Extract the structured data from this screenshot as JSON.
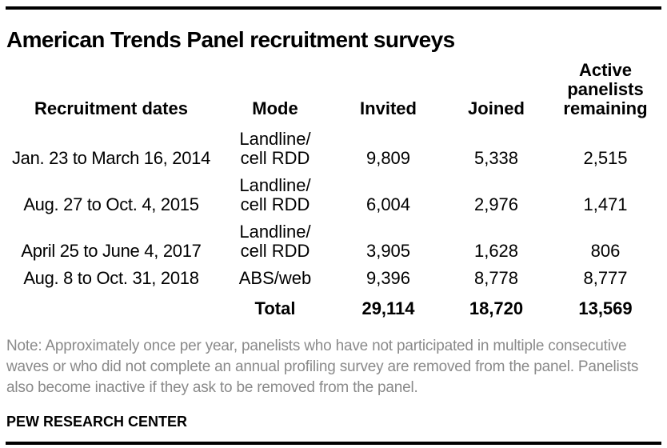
{
  "title": "American Trends Panel recruitment surveys",
  "colors": {
    "text": "#000000",
    "note_text": "#8a8a8a",
    "rule": "#000000",
    "background": "#ffffff"
  },
  "table": {
    "headers": {
      "dates": "Recruitment dates",
      "mode": "Mode",
      "invited": "Invited",
      "joined": "Joined",
      "active": "Active panelists remaining"
    },
    "rows": [
      {
        "dates": "Jan. 23 to March 16, 2014",
        "mode": [
          "Landline/",
          "cell RDD"
        ],
        "invited": "9,809",
        "joined": "5,338",
        "active": "2,515"
      },
      {
        "dates": "Aug. 27 to Oct. 4, 2015",
        "mode": [
          "Landline/",
          "cell RDD"
        ],
        "invited": "6,004",
        "joined": "2,976",
        "active": "1,471"
      },
      {
        "dates": "April 25 to June 4, 2017",
        "mode": [
          "Landline/",
          "cell RDD"
        ],
        "invited": "3,905",
        "joined": "1,628",
        "active": "806"
      },
      {
        "dates": "Aug. 8 to Oct. 31, 2018",
        "mode": [
          "ABS/web"
        ],
        "invited": "9,396",
        "joined": "8,778",
        "active": "8,777"
      }
    ],
    "total": {
      "label": "Total",
      "invited": "29,114",
      "joined": "18,720",
      "active": "13,569"
    }
  },
  "note": "Note: Approximately once per year, panelists who have not participated in multiple consecutive waves or who did not complete an annual profiling survey are removed from the panel. Panelists also become inactive if they ask to be removed from the panel.",
  "source": "PEW RESEARCH CENTER",
  "chart_data": {
    "type": "table",
    "title": "American Trends Panel recruitment surveys",
    "columns": [
      "Recruitment dates",
      "Mode",
      "Invited",
      "Joined",
      "Active panelists remaining"
    ],
    "rows": [
      [
        "Jan. 23 to March 16, 2014",
        "Landline/cell RDD",
        9809,
        5338,
        2515
      ],
      [
        "Aug. 27 to Oct. 4, 2015",
        "Landline/cell RDD",
        6004,
        2976,
        1471
      ],
      [
        "April 25 to June 4, 2017",
        "Landline/cell RDD",
        3905,
        1628,
        806
      ],
      [
        "Aug. 8 to Oct. 31, 2018",
        "ABS/web",
        9396,
        8778,
        8777
      ]
    ],
    "totals": {
      "Invited": 29114,
      "Joined": 18720,
      "Active panelists remaining": 13569
    },
    "note": "Approximately once per year, panelists who have not participated in multiple consecutive waves or who did not complete an annual profiling survey are removed from the panel. Panelists also become inactive if they ask to be removed from the panel.",
    "source": "PEW RESEARCH CENTER"
  }
}
